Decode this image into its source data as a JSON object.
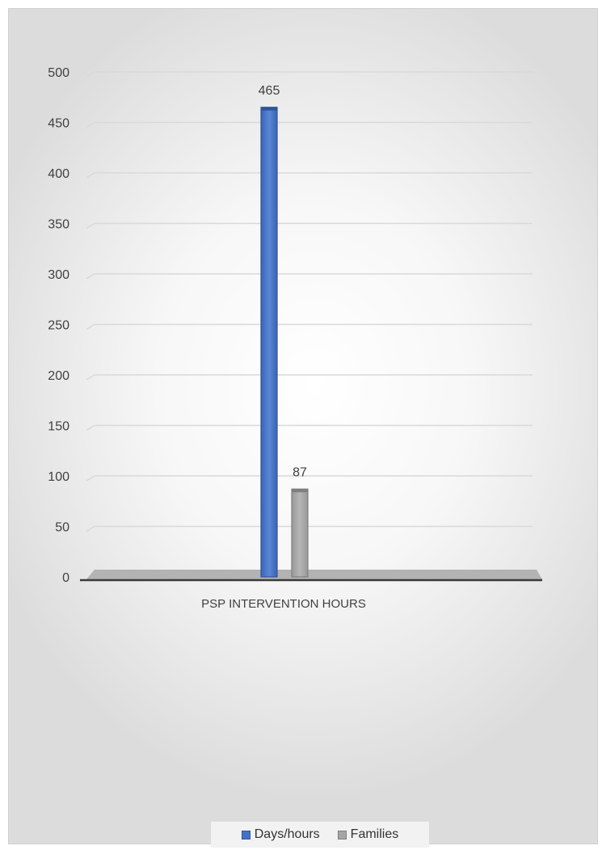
{
  "chart_data": {
    "type": "bar",
    "categories": [
      "PSP INTERVENTION HOURS"
    ],
    "series": [
      {
        "name": "Days/hours",
        "values": [
          465
        ],
        "color": "#4472c4"
      },
      {
        "name": "Families",
        "values": [
          87
        ],
        "color": "#a5a5a5"
      }
    ],
    "data_labels": [
      "465",
      "87"
    ],
    "ylim": [
      0,
      500
    ],
    "yticks": [
      0,
      50,
      100,
      150,
      200,
      250,
      300,
      350,
      400,
      450,
      500
    ],
    "grid": true,
    "legend_position": "bottom",
    "style": "3d-column"
  }
}
